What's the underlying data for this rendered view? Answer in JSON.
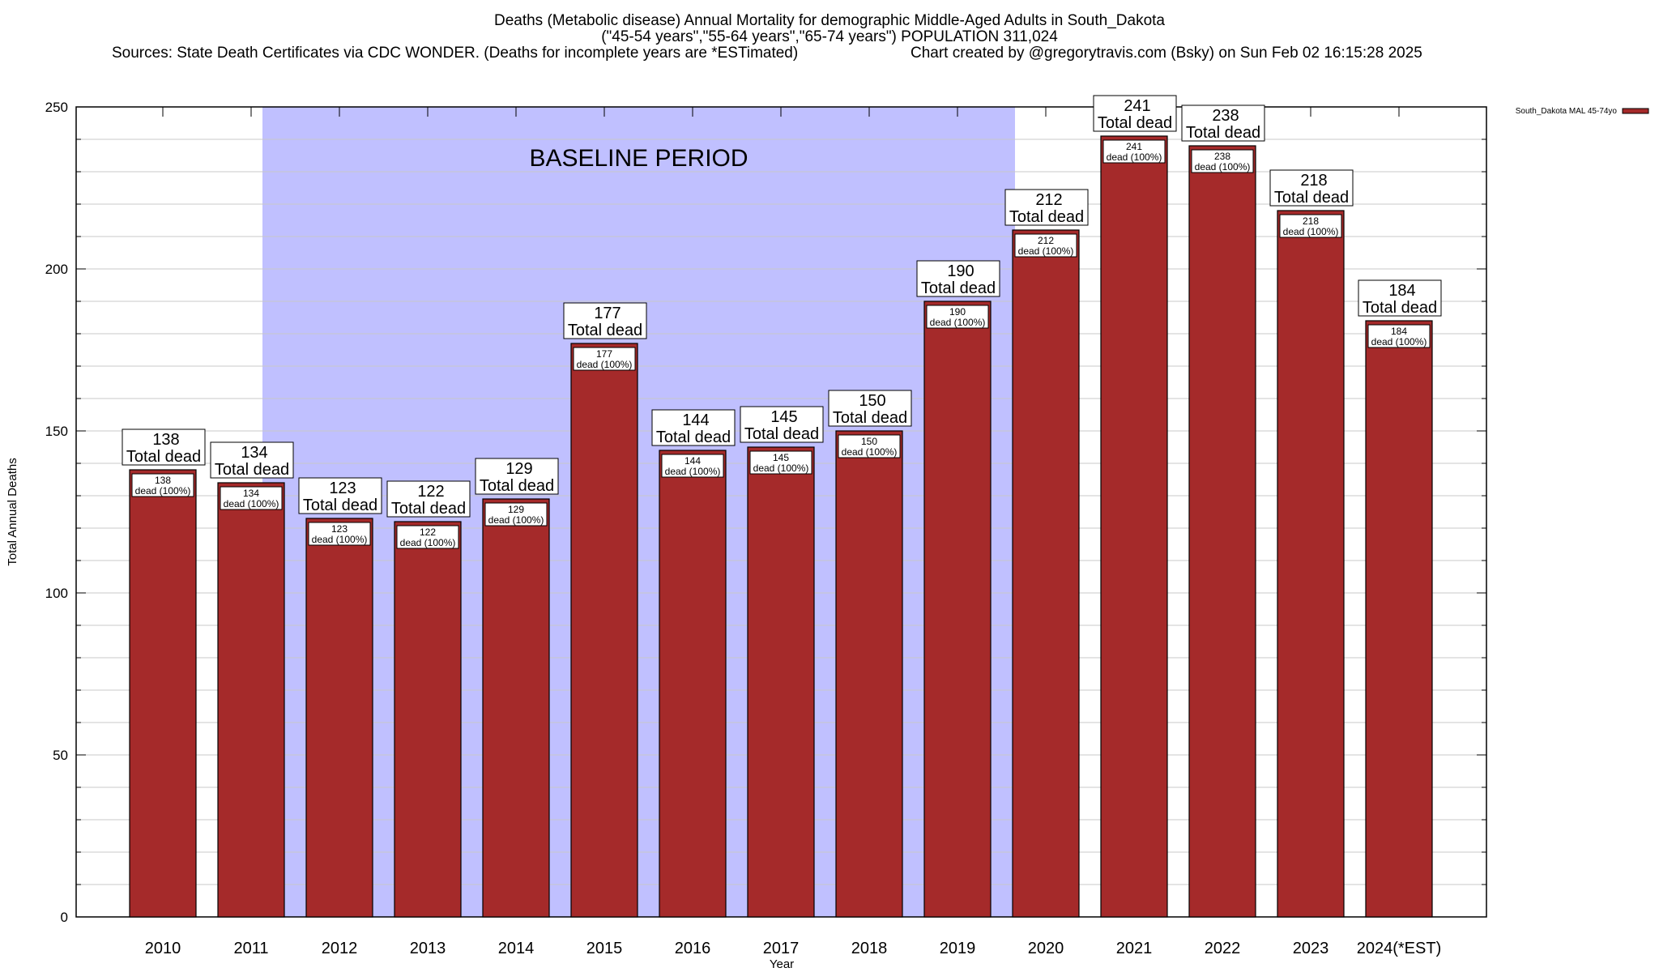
{
  "title_lines": [
    "Deaths (Metabolic disease) Annual Mortality for demographic Middle-Aged Adults in South_Dakota",
    "(\"45-54 years\",\"55-64 years\",\"65-74 years\") POPULATION 311,024"
  ],
  "sources": "Sources: State Death Certificates via CDC WONDER. (Deaths for incomplete years are *ESTimated)",
  "credit": "Chart created by @gregorytravis.com (Bsky) on Sun Feb 02 16:15:28 2025",
  "colors": {
    "bar": "#a52a2a",
    "baseline_shade": "#c0c0ff",
    "grid": "#c8c8c8"
  },
  "chart_data": {
    "type": "bar",
    "xlabel": "Year",
    "ylabel": "Total Annual Deaths",
    "ylim": [
      0,
      250
    ],
    "yticks": [
      0,
      50,
      100,
      150,
      200,
      250
    ],
    "grid": true,
    "legend": {
      "placement": "top-right",
      "entries": [
        "South_Dakota MAL 45-74yo"
      ]
    },
    "categories": [
      "2010",
      "2011",
      "2012",
      "2013",
      "2014",
      "2015",
      "2016",
      "2017",
      "2018",
      "2019",
      "2020",
      "2021",
      "2022",
      "2023",
      "2024(*EST)"
    ],
    "series": [
      {
        "name": "South_Dakota MAL 45-74yo",
        "values": [
          138,
          134,
          123,
          122,
          129,
          177,
          144,
          145,
          150,
          190,
          212,
          241,
          238,
          218,
          184
        ]
      }
    ],
    "total_label_suffix": "Total dead",
    "inner_label_suffix": "dead (100%)",
    "annotation": {
      "text": "BASELINE PERIOD",
      "from": "2012",
      "to": "2019"
    }
  }
}
